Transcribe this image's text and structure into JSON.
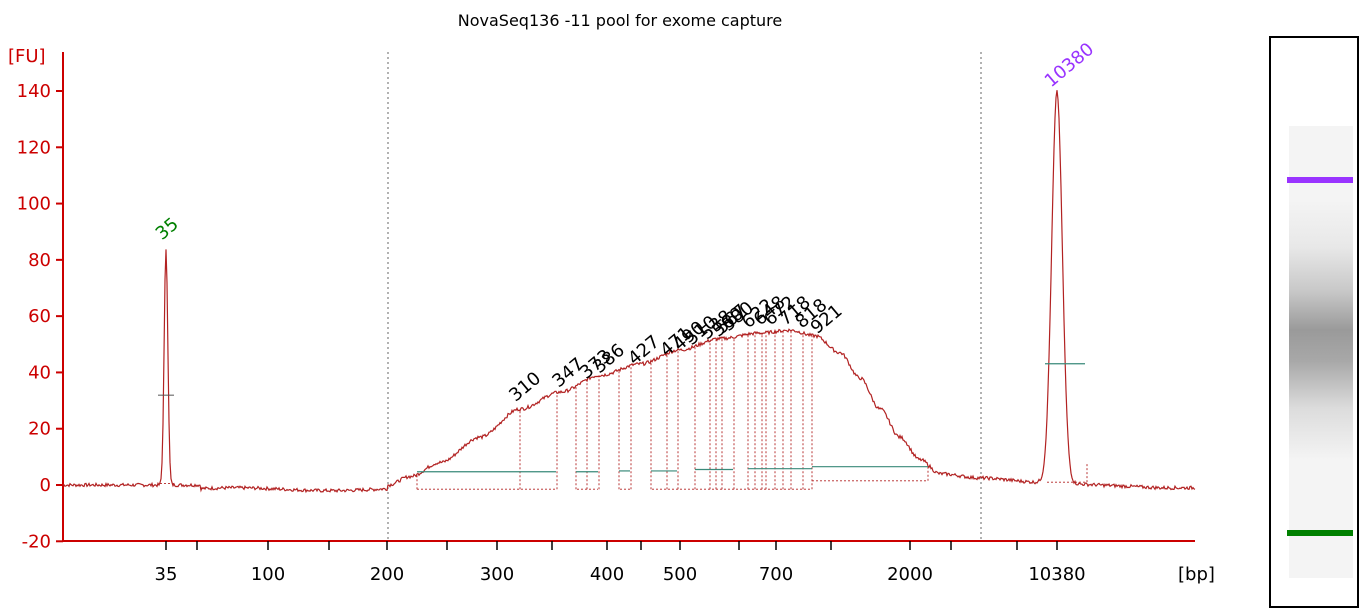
{
  "chart_data": {
    "type": "line",
    "title": "NovaSeq136 -11 pool for exome capture",
    "ylabel": "[FU]",
    "xlabel": "[bp]",
    "ylim": [
      -20,
      150
    ],
    "yticks": [
      -20,
      0,
      20,
      40,
      60,
      80,
      100,
      120,
      140
    ],
    "xtick_labels": [
      "35",
      "100",
      "200",
      "300",
      "400",
      "500",
      "700",
      "2000",
      "10380"
    ],
    "markers": [
      {
        "label": "35",
        "size_bp": 35,
        "height_fu": 84,
        "color": "#008000"
      },
      {
        "label": "10380",
        "size_bp": 10380,
        "height_fu": 139,
        "color": "#9933ff"
      }
    ],
    "peaks": [
      {
        "label": "310",
        "size_bp": 310,
        "height_fu": 28
      },
      {
        "label": "347",
        "size_bp": 347,
        "height_fu": 33
      },
      {
        "label": "373",
        "size_bp": 373,
        "height_fu": 36
      },
      {
        "label": "386",
        "size_bp": 386,
        "height_fu": 38
      },
      {
        "label": "427",
        "size_bp": 427,
        "height_fu": 41
      },
      {
        "label": "471",
        "size_bp": 471,
        "height_fu": 44
      },
      {
        "label": "490",
        "size_bp": 490,
        "height_fu": 46
      },
      {
        "label": "510",
        "size_bp": 510,
        "height_fu": 48
      },
      {
        "label": "538",
        "size_bp": 538,
        "height_fu": 50
      },
      {
        "label": "560",
        "size_bp": 560,
        "height_fu": 51
      },
      {
        "label": "567",
        "size_bp": 567,
        "height_fu": 52
      },
      {
        "label": "580",
        "size_bp": 580,
        "height_fu": 53
      },
      {
        "label": "622",
        "size_bp": 622,
        "height_fu": 54
      },
      {
        "label": "648",
        "size_bp": 648,
        "height_fu": 55
      },
      {
        "label": "672",
        "size_bp": 672,
        "height_fu": 55
      },
      {
        "label": "718",
        "size_bp": 718,
        "height_fu": 55
      },
      {
        "label": "818",
        "size_bp": 818,
        "height_fu": 54
      },
      {
        "label": "921",
        "size_bp": 921,
        "height_fu": 52
      }
    ],
    "gel": {
      "bands": [
        {
          "name": "upper-marker",
          "color": "#9933ff",
          "position_fraction": 0.3
        },
        {
          "name": "smear",
          "color": "#808080",
          "position_fraction": 0.55
        },
        {
          "name": "lower-marker",
          "color": "#008000",
          "position_fraction": 0.9
        }
      ]
    },
    "grid": false,
    "legend": "none"
  }
}
